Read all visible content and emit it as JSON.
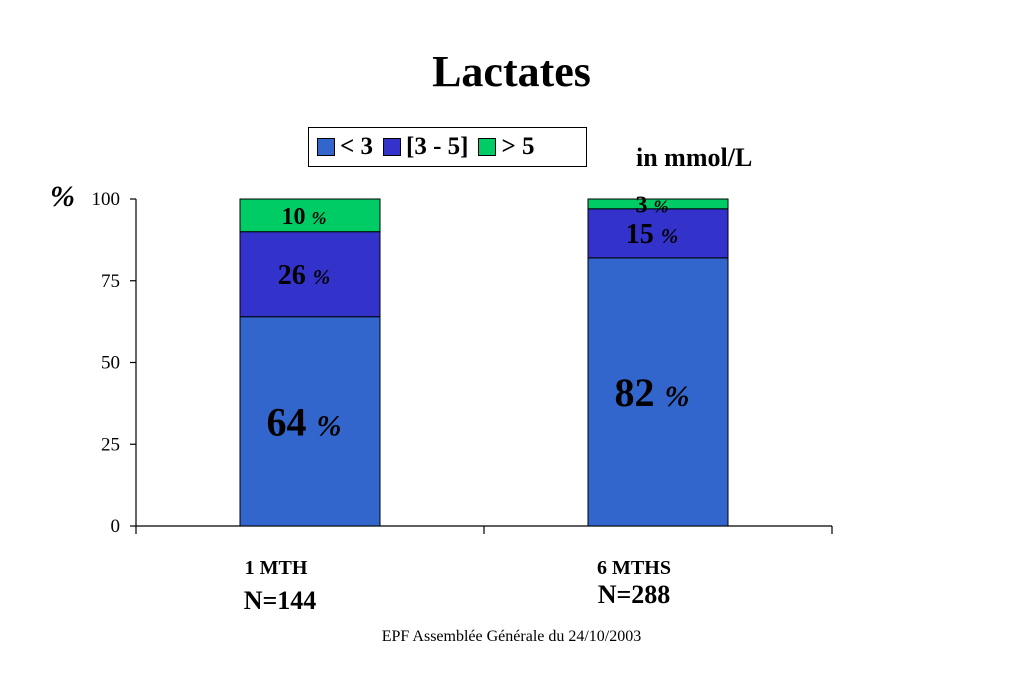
{
  "chart_data": {
    "type": "bar",
    "stacked": true,
    "title": "Lactates",
    "ylabel": "%",
    "unit_note": "in mmol/L",
    "ylim": [
      0,
      100
    ],
    "yticks": [
      0,
      25,
      50,
      75,
      100
    ],
    "grid": false,
    "legend_position": "top",
    "categories": [
      "1 MTH",
      "6 MTHS"
    ],
    "category_n": [
      "N=144",
      "N=288"
    ],
    "series": [
      {
        "name": "< 3",
        "color": "#3366CC",
        "values": [
          64,
          82
        ]
      },
      {
        "name": "[3 - 5]",
        "color": "#3333CC",
        "values": [
          26,
          15
        ]
      },
      {
        "name": "> 5",
        "color": "#00CC66",
        "values": [
          10,
          3
        ]
      }
    ],
    "data_labels": [
      [
        "64",
        "82"
      ],
      [
        "26",
        "15"
      ],
      [
        "10",
        "3"
      ]
    ],
    "data_label_suffix": "%"
  },
  "footer": "EPF Assemblée Générale du 24/10/2003"
}
